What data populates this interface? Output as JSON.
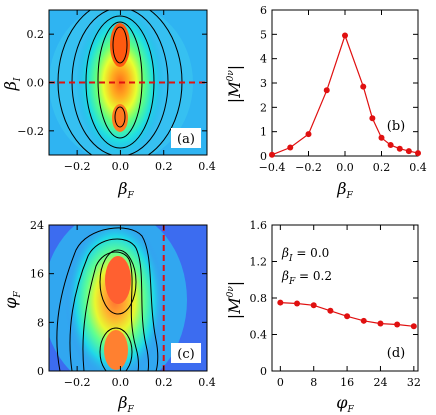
{
  "colors": {
    "red": "#e01010",
    "frame": "#000000",
    "contour": "#000000",
    "panel_label_bg": "#ffffff"
  },
  "chart_data": [
    {
      "id": "a",
      "type": "heatmap",
      "panel_label": "(a)",
      "xlabel": "β_F",
      "ylabel": "β_I",
      "xlim": [
        -0.33,
        0.4
      ],
      "ylim": [
        -0.3,
        0.3
      ],
      "xticks": [
        -0.2,
        0.0,
        0.2,
        0.4
      ],
      "xtick_labels": [
        "−0.2",
        "0.0",
        "0.2",
        "0.4"
      ],
      "yticks": [
        -0.2,
        0.0,
        0.2
      ],
      "ytick_labels": [
        "−0.2",
        "0.0",
        "0.2"
      ],
      "colormap": "jet",
      "max_location": {
        "x": 0.0,
        "y": 0.16
      },
      "dashed_line": {
        "orientation": "horizontal",
        "at": 0.0,
        "color": "red"
      }
    },
    {
      "id": "b",
      "type": "line",
      "panel_label": "(b)",
      "xlabel": "β_F",
      "ylabel": "|M^0ν|",
      "xlim": [
        -0.4,
        0.4
      ],
      "ylim": [
        0,
        6
      ],
      "xticks": [
        -0.4,
        -0.2,
        0.0,
        0.2,
        0.4
      ],
      "xtick_labels": [
        "−0.4",
        "−0.2",
        "0.0",
        "0.2",
        "0.4"
      ],
      "yticks": [
        0,
        1,
        2,
        3,
        4,
        5,
        6
      ],
      "ytick_labels": [
        "0",
        "1",
        "2",
        "3",
        "4",
        "5",
        "6"
      ],
      "x": [
        -0.4,
        -0.3,
        -0.2,
        -0.1,
        0.0,
        0.1,
        0.15,
        0.2,
        0.25,
        0.3,
        0.35,
        0.4
      ],
      "y": [
        0.05,
        0.35,
        0.9,
        2.7,
        4.95,
        2.85,
        1.55,
        0.75,
        0.45,
        0.3,
        0.2,
        0.12
      ],
      "color": "red"
    },
    {
      "id": "c",
      "type": "heatmap",
      "panel_label": "(c)",
      "xlabel": "β_F",
      "ylabel": "φ_F",
      "xlim": [
        -0.33,
        0.4
      ],
      "ylim": [
        0,
        24
      ],
      "xticks": [
        -0.2,
        0.0,
        0.2,
        0.4
      ],
      "xtick_labels": [
        "−0.2",
        "0.0",
        "0.2",
        "0.4"
      ],
      "yticks": [
        0,
        8,
        16,
        24
      ],
      "ytick_labels": [
        "0",
        "8",
        "16",
        "24"
      ],
      "colormap": "jet",
      "dashed_line": {
        "orientation": "vertical",
        "at": 0.2,
        "color": "red"
      }
    },
    {
      "id": "d",
      "type": "line",
      "panel_label": "(d)",
      "xlabel": "φ_F",
      "ylabel": "|M^0ν|",
      "xlim": [
        -2,
        33
      ],
      "ylim": [
        0,
        1.6
      ],
      "xticks": [
        0,
        8,
        16,
        24,
        32
      ],
      "xtick_labels": [
        "0",
        "8",
        "16",
        "24",
        "32"
      ],
      "yticks": [
        0,
        0.4,
        0.8,
        1.2,
        1.6
      ],
      "ytick_labels": [
        "0",
        "0.4",
        "0.8",
        "1.2",
        "1.6"
      ],
      "x": [
        0,
        4,
        8,
        12,
        16,
        20,
        24,
        28,
        32
      ],
      "y": [
        0.75,
        0.74,
        0.72,
        0.66,
        0.6,
        0.55,
        0.52,
        0.51,
        0.49
      ],
      "color": "red",
      "annotations": [
        {
          "sym": "β",
          "sub": "I",
          "text": " = 0.0"
        },
        {
          "sym": "β",
          "sub": "F",
          "text": " = 0.2"
        }
      ]
    }
  ]
}
